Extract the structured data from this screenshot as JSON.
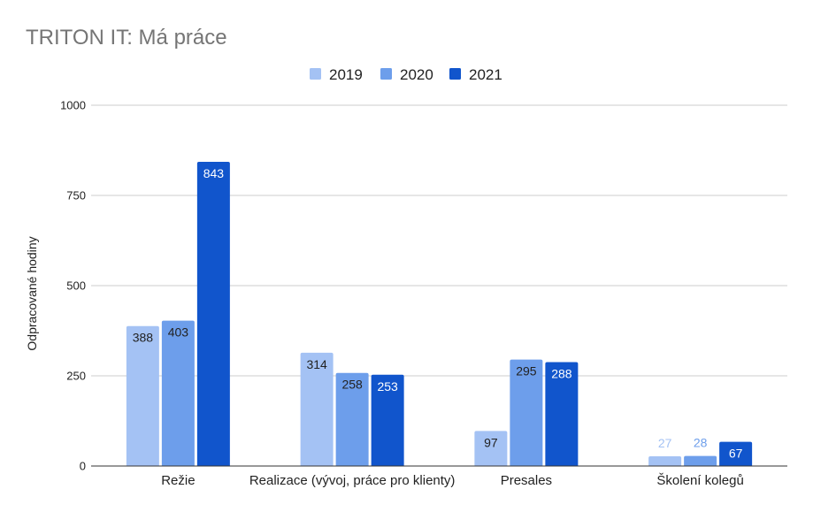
{
  "chart_data": {
    "type": "bar",
    "title": "TRITON IT: Má práce",
    "ylabel": "Odpracované hodiny",
    "xlabel": "",
    "ylim": [
      0,
      1000
    ],
    "yticks": [
      0,
      250,
      500,
      750,
      1000
    ],
    "grid": true,
    "legend_position": "top",
    "categories": [
      "Režie",
      "Realizace (vývoj, práce pro klienty)",
      "Presales",
      "Školení kolegů"
    ],
    "series": [
      {
        "name": "2019",
        "color": "#a4c2f4",
        "values": [
          388,
          314,
          97,
          27
        ]
      },
      {
        "name": "2020",
        "color": "#6d9eeb",
        "values": [
          403,
          258,
          295,
          28
        ]
      },
      {
        "name": "2021",
        "color": "#1155cc",
        "values": [
          843,
          253,
          288,
          67
        ]
      }
    ]
  }
}
